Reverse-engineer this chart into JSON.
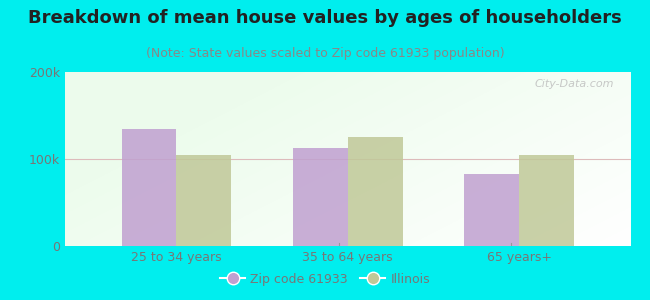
{
  "title": "Breakdown of mean house values by ages of householders",
  "subtitle": "(Note: State values scaled to Zip code 61933 population)",
  "categories": [
    "25 to 34 years",
    "35 to 64 years",
    "65 years+"
  ],
  "zip_values": [
    135000,
    113000,
    83000
  ],
  "state_values": [
    105000,
    125000,
    105000
  ],
  "ylim": [
    0,
    200000
  ],
  "ytick_labels": [
    "0",
    "100k",
    "200k"
  ],
  "zip_color": "#c0a0d0",
  "state_color": "#c0c898",
  "background_outer": "#00eeee",
  "legend_zip_label": "Zip code 61933",
  "legend_state_label": "Illinois",
  "bar_width": 0.32,
  "title_fontsize": 13,
  "subtitle_fontsize": 9,
  "tick_fontsize": 9,
  "legend_fontsize": 9,
  "watermark_text": "City-Data.com"
}
